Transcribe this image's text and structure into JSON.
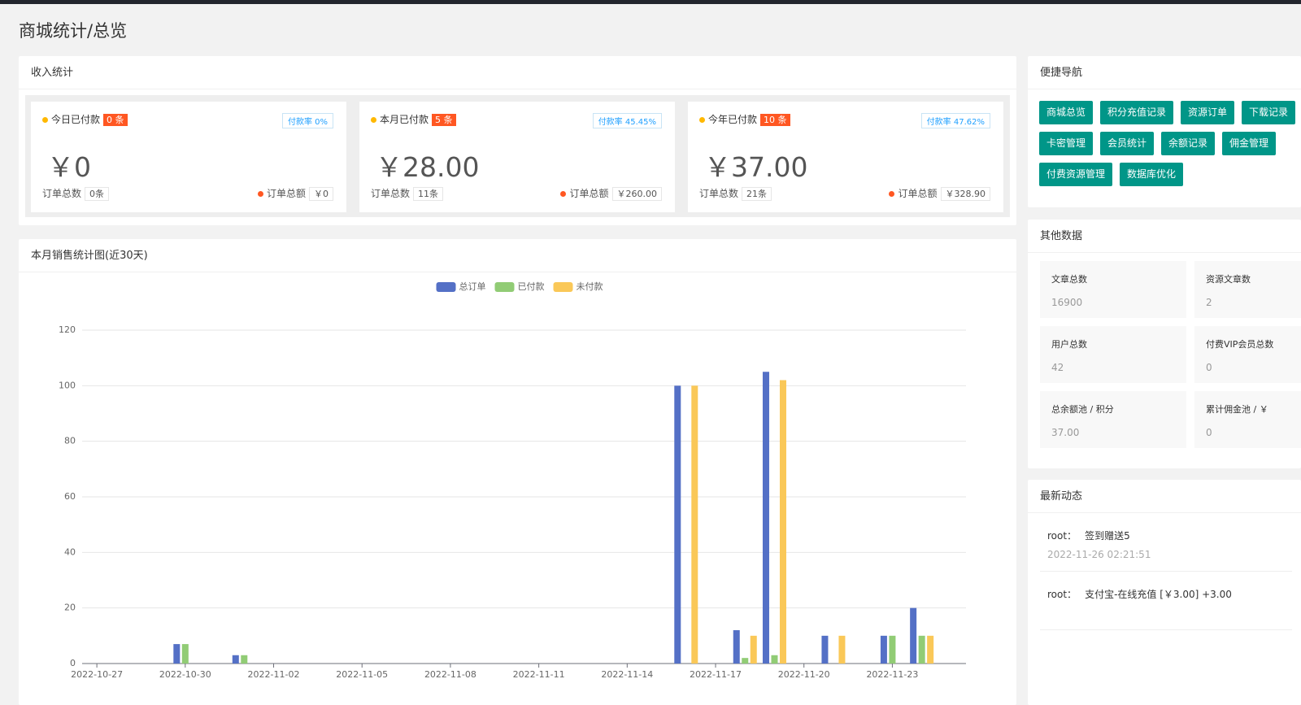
{
  "header": {
    "title": "商城统计/总览"
  },
  "income": {
    "title": "收入统计",
    "cards": [
      {
        "label": "今日已付款",
        "badge": "0 条",
        "rate": "付款率 0%",
        "amount": "￥0",
        "count_label": "订单总数",
        "count": "0条",
        "total_label": "订单总额",
        "total": "￥0"
      },
      {
        "label": "本月已付款",
        "badge": "5 条",
        "rate": "付款率 45.45%",
        "amount": "￥28.00",
        "count_label": "订单总数",
        "count": "11条",
        "total_label": "订单总额",
        "total": "￥260.00"
      },
      {
        "label": "今年已付款",
        "badge": "10 条",
        "rate": "付款率 47.62%",
        "amount": "￥37.00",
        "count_label": "订单总数",
        "count": "21条",
        "total_label": "订单总额",
        "total": "￥328.90"
      }
    ]
  },
  "chart_data": {
    "type": "bar",
    "title": "本月销售统计图(近30天)",
    "categories": [
      "2022-10-27",
      null,
      null,
      "2022-10-30",
      null,
      null,
      "2022-11-02",
      null,
      null,
      "2022-11-05",
      null,
      null,
      "2022-11-08",
      null,
      null,
      "2022-11-11",
      null,
      null,
      "2022-11-14",
      null,
      null,
      "2022-11-17",
      null,
      null,
      "2022-11-20",
      null,
      null,
      "2022-11-23",
      null,
      null
    ],
    "series": [
      {
        "name": "总订单",
        "color": "#5470c6",
        "values": [
          0,
          0,
          0,
          7,
          0,
          3,
          0,
          0,
          0,
          0,
          0,
          0,
          0,
          0,
          0,
          0,
          0,
          0,
          0,
          0,
          100,
          0,
          12,
          105,
          0,
          10,
          0,
          10,
          20,
          0
        ]
      },
      {
        "name": "已付款",
        "color": "#91cc75",
        "values": [
          0,
          0,
          0,
          7,
          0,
          3,
          0,
          0,
          0,
          0,
          0,
          0,
          0,
          0,
          0,
          0,
          0,
          0,
          0,
          0,
          0,
          0,
          2,
          3,
          0,
          0,
          0,
          10,
          10,
          0
        ]
      },
      {
        "name": "未付款",
        "color": "#fac858",
        "values": [
          0,
          0,
          0,
          0,
          0,
          0,
          0,
          0,
          0,
          0,
          0,
          0,
          0,
          0,
          0,
          0,
          0,
          0,
          0,
          0,
          100,
          0,
          10,
          102,
          0,
          10,
          0,
          0,
          10,
          0
        ]
      }
    ],
    "ylim": [
      0,
      120
    ],
    "yticks": [
      0,
      20,
      40,
      60,
      80,
      100,
      120
    ],
    "grid": true,
    "legend": "top"
  },
  "quick_nav": {
    "title": "便捷导航",
    "buttons": [
      "商城总览",
      "积分充值记录",
      "资源订单",
      "下载记录",
      "卡密管理",
      "会员统计",
      "余额记录",
      "佣金管理",
      "付费资源管理",
      "数据库优化"
    ]
  },
  "other_data": {
    "title": "其他数据",
    "items": [
      {
        "label": "文章总数",
        "value": "16900"
      },
      {
        "label": "资源文章数",
        "value": "2"
      },
      {
        "label": "用户总数",
        "value": "42"
      },
      {
        "label": "付费VIP会员总数",
        "value": "0"
      },
      {
        "label": "总余额池 / 积分",
        "value": "37.00"
      },
      {
        "label": "累计佣金池 / ￥",
        "value": "0"
      }
    ]
  },
  "recent": {
    "title": "最新动态",
    "items": [
      {
        "user": "root：",
        "text": "签到赠送5",
        "time": "2022-11-26 02:21:51"
      },
      {
        "user": "root：",
        "text": "支付宝-在线充值 [￥3.00] +3.00"
      }
    ]
  }
}
